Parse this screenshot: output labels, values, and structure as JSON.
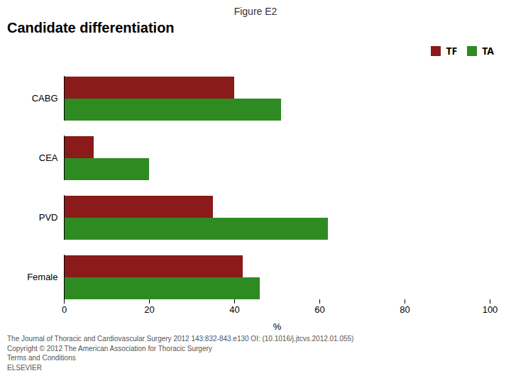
{
  "chart_data": {
    "type": "bar",
    "orientation": "horizontal",
    "title": "Figure E2",
    "subtitle": "Candidate differentiation",
    "categories": [
      "Female",
      "PVD",
      "CEA",
      "CABG"
    ],
    "series": [
      {
        "name": "TF",
        "color": "#8B1A1A",
        "values": [
          42,
          35,
          7,
          40
        ]
      },
      {
        "name": "TA",
        "color": "#2E8B22",
        "values": [
          46,
          62,
          20,
          51
        ]
      }
    ],
    "xlabel": "%",
    "xlim": [
      0,
      100
    ],
    "xticks": [
      0,
      20,
      40,
      60,
      80,
      100
    ],
    "grid": false,
    "legend": "upper right",
    "annotations": [
      "The Journal of Thoracic and Cardiovascular Surgery 2012 143:832-843.e130 OI: (10.1016/j.jtcvs.2012.01.055)",
      "Copyright © 2012  The American Association for Thoracic Surgery",
      "Terms and Conditions",
      "ELSEVIER"
    ]
  }
}
